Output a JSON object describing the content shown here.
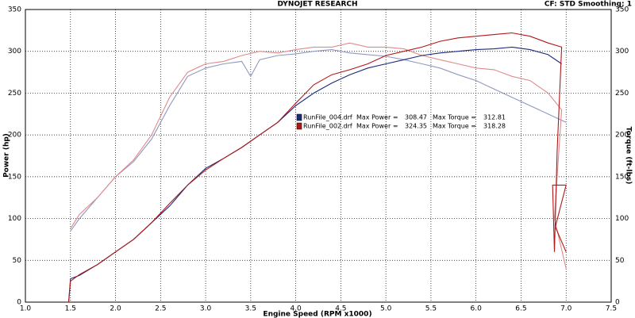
{
  "chart_data": {
    "type": "line",
    "title": "DYNOJET RESEARCH",
    "subtitle": "CF: STD  Smoothing: 1",
    "x_label": "Engine Speed (RPM x1000)",
    "y_label": "Power (hp)",
    "y2_label": "Torque (ft-lbs)",
    "xlim": [
      1,
      7.5
    ],
    "xticks": [
      {
        "value": 1,
        "label": "1.0"
      },
      1.5,
      {
        "value": 2,
        "label": "2.0"
      },
      2.5,
      {
        "value": 3,
        "label": "3.0"
      },
      3.5,
      {
        "value": 4,
        "label": "4.0"
      },
      4.5,
      {
        "value": 5,
        "label": "5.0"
      },
      5.5,
      {
        "value": 6,
        "label": "6.0"
      },
      6.5,
      {
        "value": 7,
        "label": "7.0"
      },
      7.5
    ],
    "ylim": [
      0,
      350
    ],
    "yticks": [
      0,
      50,
      100,
      150,
      200,
      250,
      300,
      350
    ],
    "y2lim": [
      0,
      350
    ],
    "y2ticks": [
      0,
      50,
      100,
      150,
      200,
      250,
      300,
      350
    ],
    "grid": true,
    "series": [
      {
        "color": "#1c2a7a",
        "x": [
          1.48,
          1.5,
          1.6,
          1.8,
          2.0,
          2.2,
          2.4,
          2.6,
          2.8,
          3.0,
          3.2,
          3.4,
          3.6,
          3.8,
          4.0,
          4.2,
          4.4,
          4.6,
          4.8,
          5.0,
          5.2,
          5.4,
          5.6,
          5.8,
          6.0,
          6.2,
          6.4,
          6.6,
          6.8,
          6.95
        ],
        "values": [
          0,
          28,
          32,
          45,
          60,
          75,
          95,
          115,
          140,
          160,
          172,
          185,
          200,
          215,
          235,
          250,
          262,
          272,
          280,
          285,
          290,
          295,
          298,
          300,
          302,
          303,
          305,
          302,
          296,
          285
        ]
      },
      {
        "color": "#b01818",
        "x": [
          1.48,
          1.5,
          1.6,
          1.8,
          2.0,
          2.2,
          2.4,
          2.6,
          2.8,
          3.0,
          3.2,
          3.4,
          3.6,
          3.8,
          4.0,
          4.2,
          4.4,
          4.6,
          4.8,
          5.0,
          5.2,
          5.4,
          5.6,
          5.8,
          6.0,
          6.2,
          6.4,
          6.6,
          6.8,
          6.95,
          6.9,
          6.87,
          6.85,
          7.0,
          6.88,
          7.0
        ],
        "values": [
          0,
          25,
          33,
          45,
          60,
          75,
          95,
          118,
          140,
          158,
          172,
          185,
          200,
          215,
          238,
          260,
          272,
          278,
          285,
          295,
          300,
          305,
          312,
          316,
          318,
          320,
          322,
          318,
          310,
          305,
          180,
          60,
          140,
          140,
          90,
          60
        ]
      },
      {
        "color": "#9098c0",
        "axis": "y2",
        "x": [
          1.5,
          1.6,
          1.8,
          2.0,
          2.2,
          2.4,
          2.6,
          2.8,
          3.0,
          3.2,
          3.4,
          3.5,
          3.6,
          3.8,
          4.0,
          4.2,
          4.4,
          4.6,
          4.8,
          5.0,
          5.2,
          5.4,
          5.6,
          5.8,
          6.0,
          6.2,
          6.4,
          6.6,
          6.8,
          7.0
        ],
        "values": [
          85,
          100,
          125,
          150,
          168,
          195,
          235,
          270,
          280,
          285,
          288,
          270,
          290,
          295,
          297,
          300,
          302,
          298,
          296,
          294,
          290,
          285,
          280,
          272,
          265,
          255,
          245,
          235,
          225,
          215
        ]
      },
      {
        "color": "#e08a8a",
        "axis": "y2",
        "x": [
          1.5,
          1.6,
          1.8,
          2.0,
          2.2,
          2.4,
          2.6,
          2.8,
          3.0,
          3.2,
          3.4,
          3.6,
          3.8,
          4.0,
          4.2,
          4.4,
          4.6,
          4.8,
          5.0,
          5.2,
          5.4,
          5.6,
          5.8,
          6.0,
          6.2,
          6.4,
          6.6,
          6.8,
          6.95,
          6.9,
          6.87,
          7.0
        ],
        "values": [
          88,
          105,
          125,
          150,
          170,
          200,
          245,
          275,
          285,
          288,
          295,
          300,
          298,
          302,
          305,
          305,
          310,
          305,
          305,
          303,
          295,
          290,
          285,
          280,
          278,
          270,
          265,
          250,
          230,
          150,
          100,
          40
        ]
      }
    ],
    "legend": [
      {
        "name": "RunFile_004.drf",
        "color": "#1c2a7a",
        "power_text": "Max Power =",
        "max_power": 308.47,
        "torque_text": "Max Torque =",
        "max_torque": 312.81
      },
      {
        "name": "RunFile_002.drf",
        "color": "#b01818",
        "power_text": "Max Power =",
        "max_power": 324.35,
        "torque_text": "Max Torque =",
        "max_torque": 318.28
      }
    ]
  }
}
